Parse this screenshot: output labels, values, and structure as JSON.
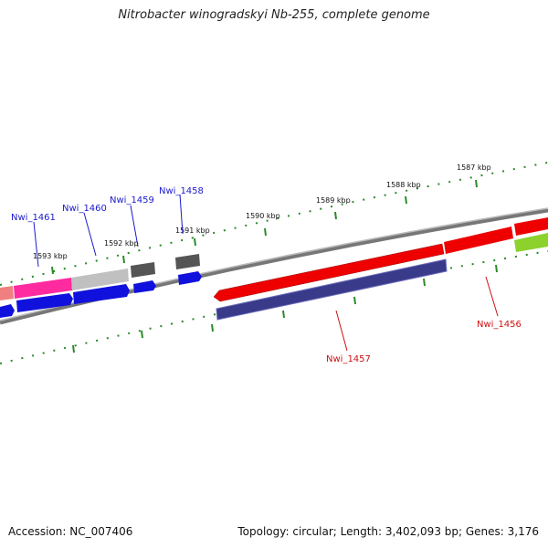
{
  "title": "Nitrobacter winogradskyi Nb-255, complete genome",
  "footer": {
    "accession": "Accession: NC_007406",
    "stats": "Topology: circular; Length: 3,402,093 bp; Genes: 3,176"
  },
  "kbp_labels": [
    "1593 kbp",
    "1592 kbp",
    "1591 kbp",
    "1590 kbp",
    "1589 kbp",
    "1588 kbp",
    "1587 kbp"
  ],
  "gene_labels": {
    "nwi_1461": "Nwi_1461",
    "nwi_1460": "Nwi_1460",
    "nwi_1459": "Nwi_1459",
    "nwi_1458": "Nwi_1458",
    "nwi_1457": "Nwi_1457",
    "nwi_1456": "Nwi_1456"
  },
  "colors": {
    "backbone": "#888888",
    "tick": "#2a8a2a",
    "label_blue": "#1a1acc",
    "label_red": "#cc1111"
  }
}
